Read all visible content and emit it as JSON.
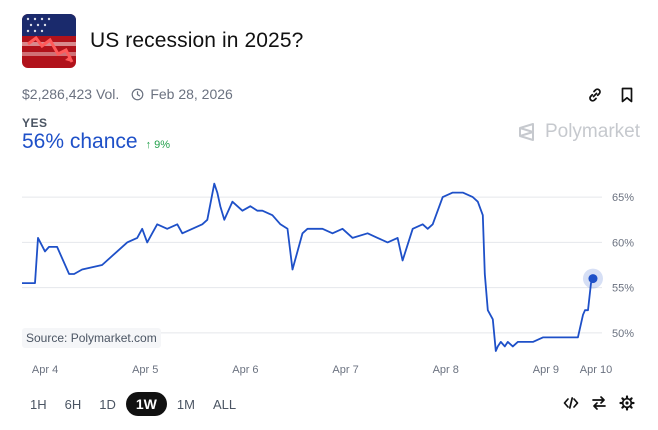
{
  "market": {
    "title": "US recession in 2025?",
    "volume": "$2,286,423 Vol.",
    "end_date": "Feb 28, 2026"
  },
  "outcome": {
    "label": "YES",
    "chance": "56% chance",
    "change": "9%",
    "change_direction": "up",
    "line_color": "#1e50c8",
    "change_color": "#22a04b"
  },
  "brand": {
    "name": "Polymarket"
  },
  "source_label": "Source: Polymarket.com",
  "timeframes": {
    "items": [
      "1H",
      "6H",
      "1D",
      "1W",
      "1M",
      "ALL"
    ],
    "selected": "1W"
  },
  "icons": {
    "header": [
      "link-icon",
      "bookmark-icon"
    ],
    "toolbar": [
      "embed-code-icon",
      "swap-arrows-icon",
      "settings-gear-icon"
    ],
    "meta": "clock-icon"
  },
  "chart_data": {
    "type": "line",
    "series": [
      {
        "x": [
          0,
          0.13,
          0.16,
          0.23,
          0.27,
          0.35,
          0.47,
          0.52,
          0.6,
          0.8,
          0.95,
          1.05,
          1.15,
          1.2,
          1.25,
          1.3,
          1.35,
          1.45,
          1.55,
          1.6,
          1.7,
          1.8,
          1.85,
          1.92,
          1.95,
          1.98,
          2.02,
          2.1,
          2.2,
          2.28,
          2.35,
          2.4,
          2.5,
          2.58,
          2.65,
          2.7,
          2.8,
          2.85,
          2.92,
          3.0,
          3.1,
          3.2,
          3.3,
          3.45,
          3.55,
          3.65,
          3.75,
          3.8,
          3.9,
          4.0,
          4.05,
          4.1,
          4.2,
          4.3,
          4.4,
          4.5,
          4.55,
          4.6,
          4.62,
          4.65,
          4.7,
          4.73,
          4.75,
          4.78,
          4.82,
          4.85,
          4.9,
          4.95,
          5.0,
          5.1,
          5.2,
          5.3,
          5.4,
          5.5,
          5.55,
          5.6,
          5.62,
          5.65,
          5.68,
          5.7
        ],
        "y": [
          55.5,
          55.5,
          60.5,
          59.0,
          59.5,
          59.5,
          56.5,
          56.5,
          57.0,
          57.5,
          59.0,
          60.0,
          60.5,
          61.5,
          60.0,
          61.0,
          62.0,
          61.5,
          62.0,
          61.0,
          61.5,
          62.0,
          62.5,
          66.5,
          65.5,
          64.0,
          62.5,
          64.5,
          63.5,
          64.0,
          63.5,
          63.5,
          63.0,
          62.0,
          61.5,
          57.0,
          61.0,
          61.5,
          61.5,
          61.5,
          61.0,
          61.5,
          60.5,
          61.0,
          60.5,
          60.0,
          60.5,
          58.0,
          61.5,
          62.0,
          61.5,
          62.0,
          65.0,
          65.5,
          65.5,
          65.0,
          64.5,
          63.0,
          56.5,
          52.5,
          51.5,
          48.0,
          48.5,
          49.0,
          48.5,
          49.0,
          48.5,
          49.0,
          49.0,
          49.0,
          49.5,
          49.5,
          49.5,
          49.5,
          49.5,
          52.0,
          52.5,
          52.5,
          55.5,
          56.0
        ]
      }
    ],
    "x_ticks": [
      "Apr 4",
      "Apr 5",
      "Apr 6",
      "Apr 7",
      "Apr 8",
      "Apr 9",
      "Apr 10"
    ],
    "x_tick_values": [
      0.35,
      1.35,
      2.35,
      3.35,
      4.35,
      5.35,
      5.85
    ],
    "xlim": [
      0,
      5.85
    ],
    "y_ticks": [
      "65%",
      "60%",
      "55%",
      "50%"
    ],
    "y_tick_values": [
      65,
      60,
      55,
      50
    ],
    "ylim": [
      47,
      68
    ],
    "grid": true,
    "last_point_marker": true
  }
}
